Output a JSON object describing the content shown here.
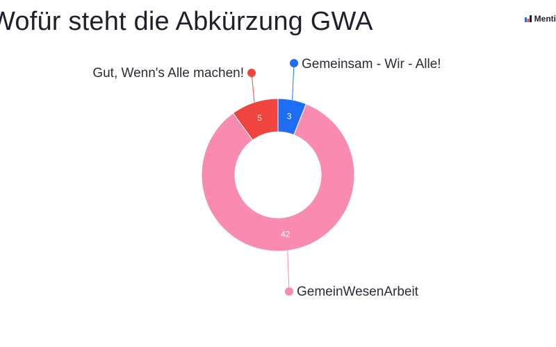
{
  "header": {
    "title": "Wofür steht die Abkürzung GWA",
    "brand": "Menti"
  },
  "colors": {
    "blue": "#1e6ef5",
    "red": "#f0453e",
    "pink": "#f98bb0"
  },
  "chart_data": {
    "type": "pie",
    "variant": "donut",
    "title": "Wofür steht die Abkürzung GWA",
    "slices": [
      {
        "label": "Gemeinsam - Wir - Alle!",
        "value": 3,
        "color": "#1e6ef5"
      },
      {
        "label": "GemeinWesenArbeit",
        "value": 42,
        "color": "#f98bb0"
      },
      {
        "label": "Gut, Wenn's Alle machen!",
        "value": 5,
        "color": "#f0453e"
      }
    ]
  }
}
